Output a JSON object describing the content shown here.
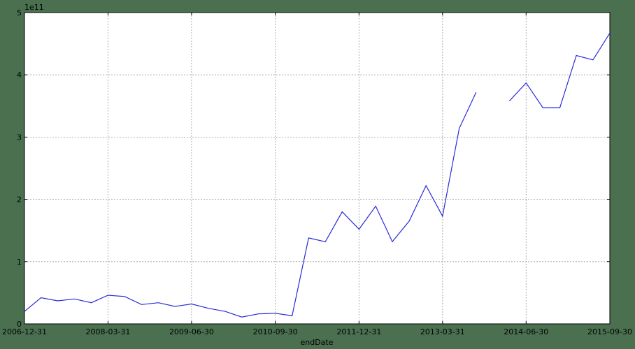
{
  "chart_data": {
    "type": "line",
    "xlabel": "endDate",
    "ylabel": "",
    "y_multiplier": "1e11",
    "xlim": [
      "2006-12-31",
      "2015-09-30"
    ],
    "ylim": [
      0,
      5
    ],
    "grid": true,
    "x_ticks": [
      "2006-12-31",
      "2008-03-31",
      "2009-06-30",
      "2010-09-30",
      "2011-12-31",
      "2013-03-31",
      "2014-06-30",
      "2015-09-30"
    ],
    "y_ticks": [
      "0",
      "1",
      "2",
      "3",
      "4",
      "5"
    ],
    "series": [
      {
        "color": "#2b2bd9",
        "points": [
          [
            "2006-12-31",
            0.2
          ],
          [
            "2007-03-31",
            0.42
          ],
          [
            "2007-06-30",
            0.37
          ],
          [
            "2007-09-30",
            0.4
          ],
          [
            "2007-12-31",
            0.34
          ],
          [
            "2008-03-31",
            0.46
          ],
          [
            "2008-06-30",
            0.44
          ],
          [
            "2008-09-30",
            0.31
          ],
          [
            "2008-12-31",
            0.34
          ],
          [
            "2009-03-31",
            0.28
          ],
          [
            "2009-06-30",
            0.32
          ],
          [
            "2009-09-30",
            0.25
          ],
          [
            "2009-12-31",
            0.2
          ],
          [
            "2010-03-31",
            0.11
          ],
          [
            "2010-06-30",
            0.16
          ],
          [
            "2010-09-30",
            0.17
          ],
          [
            "2010-12-31",
            0.13
          ],
          [
            "2011-03-31",
            1.38
          ],
          [
            "2011-06-30",
            1.32
          ],
          [
            "2011-09-30",
            1.8
          ],
          [
            "2011-12-31",
            1.52
          ],
          [
            "2012-03-31",
            1.89
          ],
          [
            "2012-06-30",
            1.32
          ],
          [
            "2012-09-30",
            1.65
          ],
          [
            "2012-12-31",
            2.22
          ],
          [
            "2013-03-31",
            1.73
          ],
          [
            "2013-06-30",
            3.14
          ],
          [
            "2013-09-30",
            3.72
          ],
          [
            "2013-12-31",
            null
          ],
          [
            "2014-03-31",
            3.58
          ],
          [
            "2014-06-30",
            3.87
          ],
          [
            "2014-09-30",
            3.47
          ],
          [
            "2014-12-31",
            3.47
          ],
          [
            "2015-03-31",
            4.31
          ],
          [
            "2015-06-30",
            4.24
          ],
          [
            "2015-09-30",
            4.67
          ]
        ]
      }
    ]
  }
}
